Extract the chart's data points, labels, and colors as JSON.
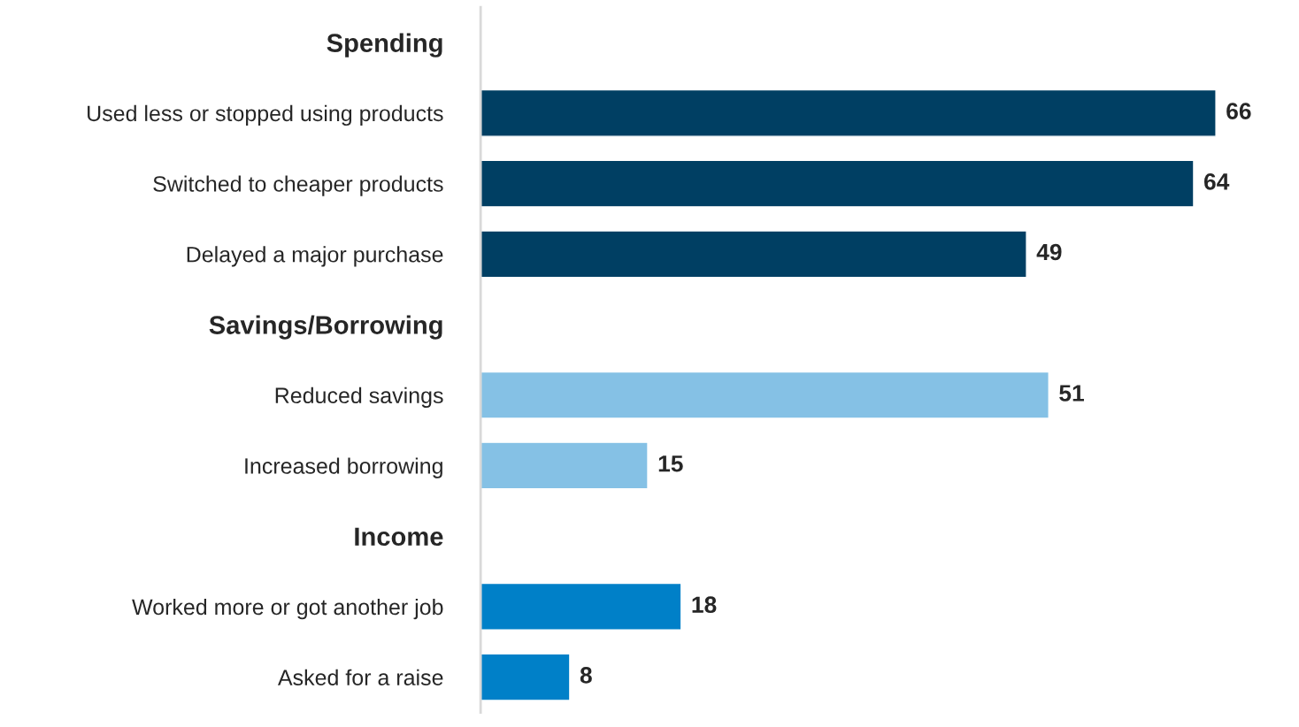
{
  "chart_data": {
    "type": "bar",
    "orientation": "horizontal",
    "categories": [
      "Spending",
      "Used less or stopped using products",
      "Switched to cheaper products",
      "Delayed a major purchase",
      "Savings/Borrowing",
      "Reduced savings",
      "Increased borrowing",
      "Income",
      "Worked more or got another job",
      "Asked for a raise"
    ],
    "values": [
      null,
      66,
      64,
      49,
      null,
      51,
      15,
      null,
      18,
      8
    ],
    "colors": [
      null,
      "#003f63",
      "#003f63",
      "#003f63",
      null,
      "#85c1e5",
      "#85c1e5",
      null,
      "#0080c8",
      "#0080c8"
    ],
    "data_labels": true,
    "grid": false,
    "legend": false,
    "tick_labels": "y"
  }
}
